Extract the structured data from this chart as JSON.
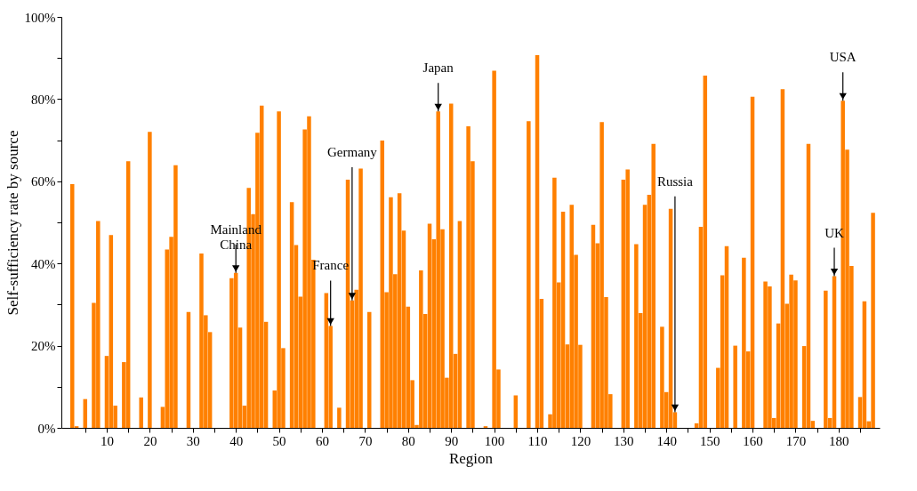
{
  "chart_data": {
    "type": "bar",
    "xlabel": "Region",
    "ylabel": "Self-sufficiency rate by source",
    "color": "#ff8000",
    "x": [
      2,
      3,
      5,
      7,
      8,
      10,
      11,
      12,
      14,
      15,
      18,
      20,
      23,
      24,
      25,
      26,
      29,
      32,
      33,
      34,
      39,
      40,
      41,
      42,
      43,
      44,
      45,
      46,
      47,
      49,
      50,
      51,
      53,
      54,
      55,
      56,
      57,
      58,
      61,
      62,
      64,
      66,
      67,
      68,
      69,
      71,
      74,
      75,
      76,
      77,
      78,
      79,
      80,
      81,
      82,
      83,
      84,
      85,
      86,
      87,
      88,
      89,
      90,
      91,
      92,
      94,
      95,
      98,
      100,
      101,
      105,
      108,
      110,
      111,
      113,
      114,
      115,
      116,
      117,
      118,
      119,
      120,
      123,
      124,
      125,
      126,
      127,
      130,
      131,
      133,
      134,
      135,
      136,
      137,
      139,
      140,
      141,
      142,
      147,
      148,
      149,
      152,
      153,
      154,
      156,
      158,
      159,
      160,
      163,
      164,
      165,
      166,
      167,
      168,
      169,
      170,
      172,
      173,
      174,
      177,
      178,
      179,
      181,
      182,
      183,
      185,
      186,
      187,
      188
    ],
    "values": [
      59.3,
      0.4,
      7.0,
      30.4,
      50.3,
      17.5,
      46.9,
      5.4,
      16.0,
      64.9,
      7.4,
      72.0,
      5.1,
      43.4,
      46.5,
      63.9,
      28.2,
      42.4,
      27.4,
      23.3,
      36.4,
      37.7,
      24.4,
      5.4,
      58.4,
      52,
      71.8,
      78.4,
      25.8,
      9.1,
      77.0,
      19.4,
      54.9,
      44.5,
      31.9,
      72.6,
      75.8,
      40.9,
      32.8,
      24.8,
      4.9,
      60.4,
      31,
      33.6,
      63.1,
      28.2,
      69.9,
      33.0,
      56.1,
      37.4,
      57.1,
      48.0,
      29.5,
      11.6,
      0.7,
      38.3,
      27.7,
      49.7,
      45.9,
      77.0,
      48.3,
      12.2,
      78.9,
      18.0,
      50.3,
      73.4,
      64.9,
      0.4,
      86.9,
      14.2,
      7.9,
      74.6,
      90.7,
      31.4,
      3.3,
      60.9,
      35.4,
      52.6,
      20.3,
      54.3,
      42.1,
      20.2,
      49.4,
      44.9,
      74.4,
      31.8,
      8.2,
      60.4,
      62.9,
      44.7,
      27.9,
      54.3,
      56.7,
      69.1,
      24.6,
      8.7,
      53.3,
      3.8,
      1.1,
      48.9,
      85.7,
      14.6,
      37.1,
      44.2,
      20.0,
      41.4,
      18.6,
      80.6,
      35.6,
      34.4,
      2.4,
      25.4,
      82.4,
      30.2,
      37.3,
      35.9,
      19.9,
      69.1,
      1.7,
      33.4,
      2.4,
      36.9,
      79.6,
      67.7,
      39.4,
      7.5,
      30.8,
      1.6,
      52.3
    ],
    "xlim": [
      0.5,
      188.5
    ],
    "xticks": [
      {
        "value": 5,
        "label": null
      },
      10,
      {
        "value": 15,
        "label": null
      },
      20,
      {
        "value": 25,
        "label": null
      },
      30,
      {
        "value": 35,
        "label": null
      },
      40,
      {
        "value": 45,
        "label": null
      },
      50,
      {
        "value": 55,
        "label": null
      },
      60,
      {
        "value": 65,
        "label": null
      },
      70,
      {
        "value": 75,
        "label": null
      },
      80,
      {
        "value": 85,
        "label": null
      },
      90,
      {
        "value": 95,
        "label": null
      },
      100,
      {
        "value": 105,
        "label": null
      },
      110,
      {
        "value": 115,
        "label": null
      },
      120,
      {
        "value": 125,
        "label": null
      },
      130,
      {
        "value": 135,
        "label": null
      },
      140,
      {
        "value": 145,
        "label": null
      },
      150,
      {
        "value": 155,
        "label": null
      },
      160,
      {
        "value": 165,
        "label": null
      },
      170,
      {
        "value": 175,
        "label": null
      },
      180,
      {
        "value": 185,
        "label": null
      }
    ],
    "ylim": [
      0,
      100
    ],
    "yticks": [
      {
        "value": 0,
        "label": "0%"
      },
      {
        "value": 10,
        "label": null
      },
      {
        "value": 20,
        "label": "20%"
      },
      {
        "value": 30,
        "label": null
      },
      {
        "value": 40,
        "label": "40%"
      },
      {
        "value": 50,
        "label": null
      },
      {
        "value": 60,
        "label": "60%"
      },
      {
        "value": 70,
        "label": null
      },
      {
        "value": 80,
        "label": "80%"
      },
      {
        "value": 90,
        "label": null
      },
      {
        "value": 100,
        "label": "100%"
      }
    ],
    "annotations": [
      {
        "text": "Mainland\nChina",
        "x": 40,
        "y": 37.7
      },
      {
        "text": "France",
        "x": 62,
        "y": 24.8
      },
      {
        "text": "Germany",
        "x": 67,
        "y": 31
      },
      {
        "text": "Japan",
        "x": 87,
        "y": 77.0
      },
      {
        "text": "Russia",
        "x": 142,
        "y": 3.8
      },
      {
        "text": "UK",
        "x": 179,
        "y": 36.9
      },
      {
        "text": "USA",
        "x": 181,
        "y": 79.6
      }
    ]
  }
}
